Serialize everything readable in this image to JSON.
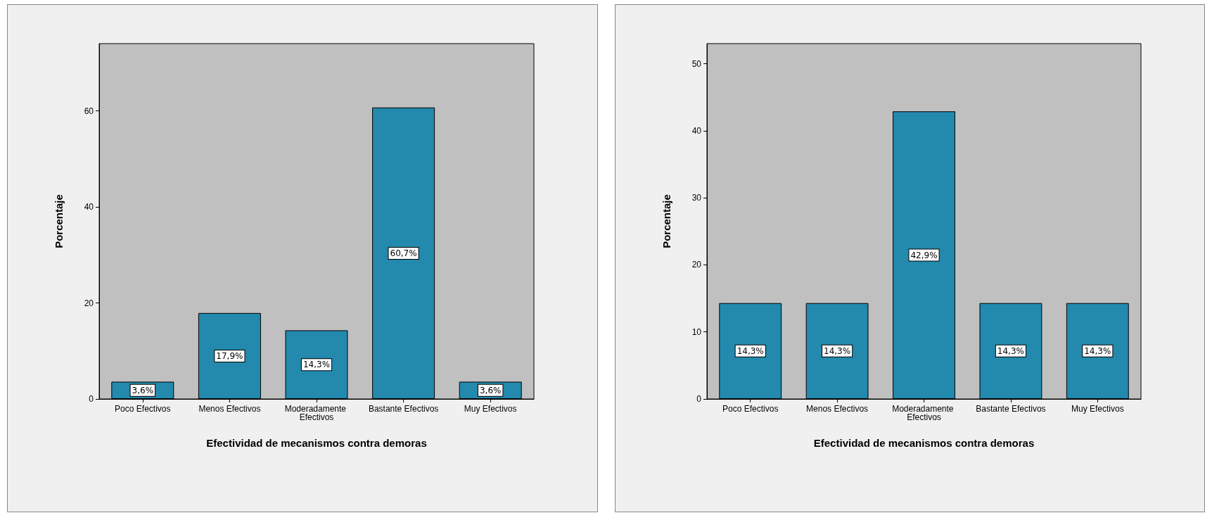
{
  "chart_data": [
    {
      "type": "bar",
      "xlabel": "Efectividad de mecanismos contra demoras",
      "ylabel": "Porcentaje",
      "categories": [
        "Poco Efectivos",
        "Menos Efectivos",
        "Moderadamente Efectivos",
        "Bastante Efectivos",
        "Muy Efectivos"
      ],
      "values": [
        3.6,
        17.9,
        14.3,
        60.7,
        3.6
      ],
      "value_labels": [
        "3,6%",
        "17,9%",
        "14,3%",
        "60,7%",
        "3,6%"
      ],
      "color": "#2389ad",
      "ylim": [
        0,
        74
      ],
      "yticks": [
        0,
        20,
        40,
        60
      ]
    },
    {
      "type": "bar",
      "xlabel": "Efectividad de mecanismos contra demoras",
      "ylabel": "Porcentaje",
      "categories": [
        "Poco Efectivos",
        "Menos Efectivos",
        "Moderadamente Efectivos",
        "Bastante Efectivos",
        "Muy Efectivos"
      ],
      "values": [
        14.3,
        14.3,
        42.9,
        14.3,
        14.3
      ],
      "value_labels": [
        "14,3%",
        "14,3%",
        "42,9%",
        "14,3%",
        "14,3%"
      ],
      "color": "#2389ad",
      "ylim": [
        0,
        53
      ],
      "yticks": [
        0,
        10,
        20,
        30,
        40,
        50
      ]
    }
  ]
}
